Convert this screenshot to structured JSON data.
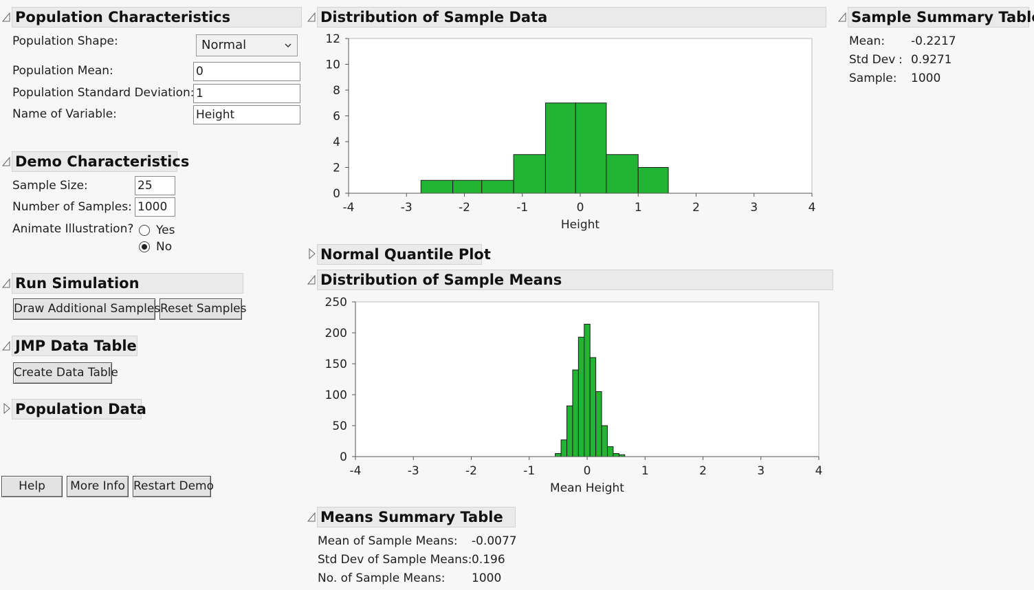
{
  "population": {
    "title": "Population Characteristics",
    "shape_label": "Population Shape:",
    "shape_value": "Normal",
    "mean_label": "Population Mean:",
    "mean_value": "0",
    "sd_label": "Population Standard Deviation:",
    "sd_value": "1",
    "varname_label": "Name of Variable:",
    "varname_value": "Height"
  },
  "demo": {
    "title": "Demo Characteristics",
    "sample_size_label": "Sample Size:",
    "sample_size_value": "25",
    "num_samples_label": "Number of Samples:",
    "num_samples_value": "1000",
    "animate_label": "Animate Illustration?",
    "yes_label": "Yes",
    "no_label": "No",
    "animate_selected": "No"
  },
  "run": {
    "title": "Run Simulation",
    "draw_label": "Draw Additional Samples",
    "reset_label": "Reset Samples"
  },
  "jmp": {
    "title": "JMP Data Table",
    "create_label": "Create Data Table"
  },
  "popdata": {
    "title": "Population Data"
  },
  "bottom_buttons": {
    "help": "Help",
    "more_info": "More Info",
    "restart": "Restart Demo"
  },
  "sample_dist": {
    "title": "Distribution of Sample Data"
  },
  "quantile": {
    "title": "Normal Quantile Plot"
  },
  "means_dist": {
    "title": "Distribution of Sample Means"
  },
  "sample_summary": {
    "title": "Sample Summary Table",
    "mean_label": "Mean:",
    "mean_value": "-0.2217",
    "sd_label": "Std Dev",
    "sd_colon": ":",
    "sd_value": "0.9271",
    "sample_label": "Sample:",
    "sample_value": "1000"
  },
  "means_summary": {
    "title": "Means Summary Table",
    "mean_label": "Mean of Sample Means:",
    "mean_value": "-0.0077",
    "sd_label": "Std Dev of Sample Means:",
    "sd_value": "0.196",
    "n_label": "No. of Sample Means:",
    "n_value": "1000"
  },
  "colors": {
    "bar_fill": "#22b533",
    "bar_stroke": "#1a1a1a",
    "header_bg": "#eaeaea"
  },
  "chart_data": [
    {
      "type": "bar",
      "xlabel": "Height",
      "xlim": [
        -4,
        4
      ],
      "ylim": [
        0,
        12
      ],
      "xticks": [
        -4,
        -3,
        -2,
        -1,
        0,
        1,
        2,
        3,
        4
      ],
      "yticks": [
        0,
        2,
        4,
        6,
        8,
        10,
        12
      ],
      "bins": [
        {
          "x0": -2.75,
          "x1": -2.2,
          "count": 1
        },
        {
          "x0": -2.2,
          "x1": -1.7,
          "count": 1
        },
        {
          "x0": -1.7,
          "x1": -1.15,
          "count": 1
        },
        {
          "x0": -1.15,
          "x1": -0.6,
          "count": 3
        },
        {
          "x0": -0.6,
          "x1": -0.08,
          "count": 7
        },
        {
          "x0": -0.08,
          "x1": 0.45,
          "count": 7
        },
        {
          "x0": 0.45,
          "x1": 1.0,
          "count": 3
        },
        {
          "x0": 1.0,
          "x1": 1.52,
          "count": 2
        }
      ]
    },
    {
      "type": "bar",
      "xlabel": "Mean Height",
      "xlim": [
        -4,
        4
      ],
      "ylim": [
        0,
        250
      ],
      "xticks": [
        -4,
        -3,
        -2,
        -1,
        0,
        1,
        2,
        3,
        4
      ],
      "yticks": [
        0,
        50,
        100,
        150,
        200,
        250
      ],
      "bins": [
        {
          "x0": -0.55,
          "x1": -0.45,
          "count": 5
        },
        {
          "x0": -0.45,
          "x1": -0.35,
          "count": 27
        },
        {
          "x0": -0.35,
          "x1": -0.25,
          "count": 82
        },
        {
          "x0": -0.25,
          "x1": -0.15,
          "count": 140
        },
        {
          "x0": -0.15,
          "x1": -0.05,
          "count": 193
        },
        {
          "x0": -0.05,
          "x1": 0.05,
          "count": 214
        },
        {
          "x0": 0.05,
          "x1": 0.15,
          "count": 160
        },
        {
          "x0": 0.15,
          "x1": 0.25,
          "count": 105
        },
        {
          "x0": 0.25,
          "x1": 0.35,
          "count": 50
        },
        {
          "x0": 0.35,
          "x1": 0.45,
          "count": 16
        },
        {
          "x0": 0.45,
          "x1": 0.55,
          "count": 5
        },
        {
          "x0": 0.55,
          "x1": 0.65,
          "count": 3
        }
      ]
    }
  ]
}
